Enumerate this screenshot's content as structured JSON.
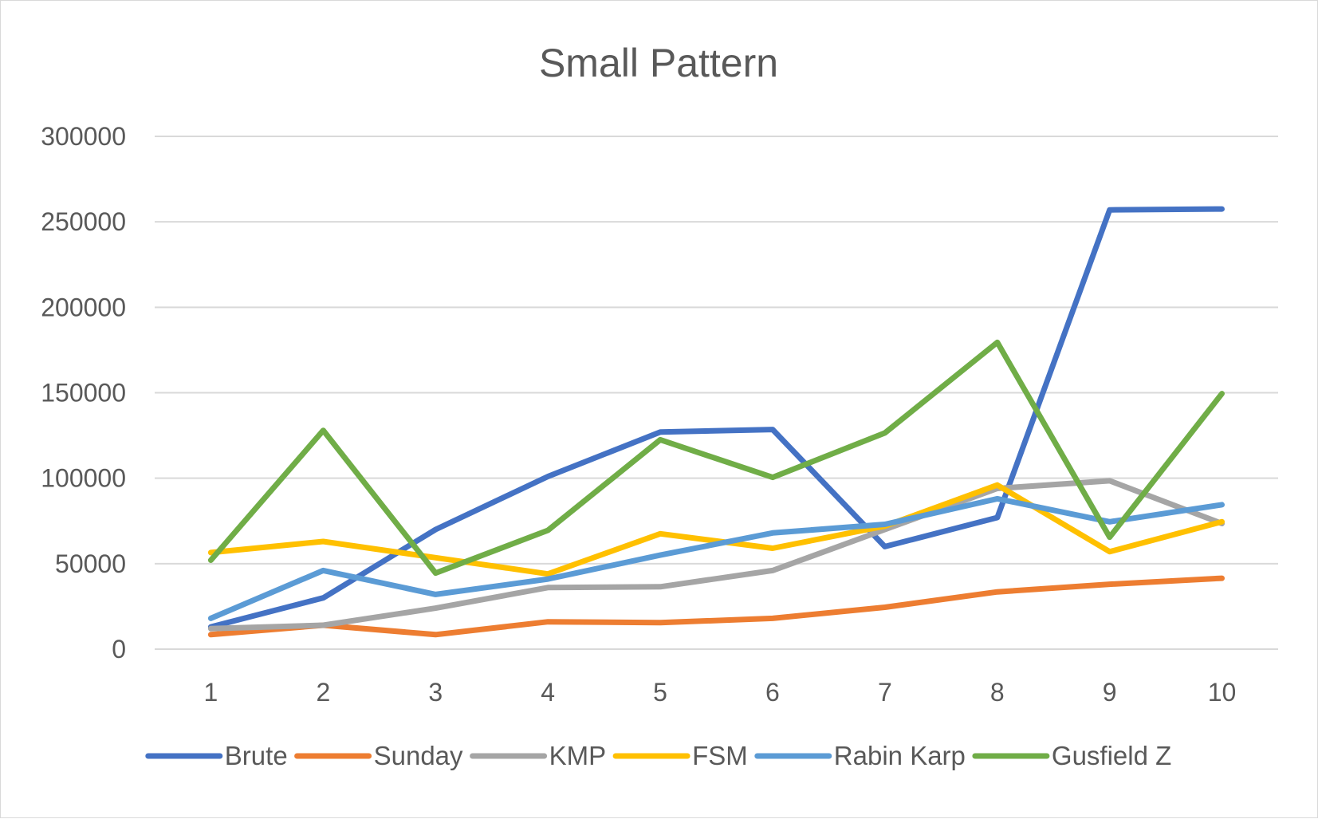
{
  "chart_data": {
    "type": "line",
    "title": "Small Pattern",
    "xlabel": "",
    "ylabel": "",
    "categories": [
      "1",
      "2",
      "3",
      "4",
      "5",
      "6",
      "7",
      "8",
      "9",
      "10"
    ],
    "ylim": [
      0,
      300000
    ],
    "yticks": [
      0,
      50000,
      100000,
      150000,
      200000,
      250000,
      300000
    ],
    "ytick_labels": [
      "0",
      "50000",
      "100000",
      "150000",
      "200000",
      "250000",
      "300000"
    ],
    "grid": true,
    "legend_position": "bottom",
    "series": [
      {
        "name": "Brute",
        "color": "#4472C4",
        "values": [
          13000,
          30000,
          70000,
          101000,
          127000,
          128500,
          60000,
          77000,
          257000,
          257500
        ]
      },
      {
        "name": "Sunday",
        "color": "#ED7D31",
        "values": [
          8500,
          14000,
          8500,
          16000,
          15500,
          18000,
          24500,
          33500,
          38000,
          41500
        ]
      },
      {
        "name": "KMP",
        "color": "#A5A5A5",
        "values": [
          12000,
          14000,
          24000,
          36000,
          36500,
          46000,
          70000,
          94000,
          98500,
          73500
        ]
      },
      {
        "name": "FSM",
        "color": "#FFC000",
        "values": [
          56500,
          63000,
          53500,
          44000,
          67500,
          59000,
          72000,
          96000,
          57000,
          74500
        ]
      },
      {
        "name": "Rabin Karp",
        "color": "#5B9BD5",
        "values": [
          18000,
          46000,
          32000,
          41000,
          55000,
          68000,
          73000,
          88000,
          74500,
          84500
        ]
      },
      {
        "name": "Gusfield Z",
        "color": "#70AD47",
        "values": [
          52000,
          128000,
          44500,
          69500,
          122500,
          100500,
          126500,
          179500,
          65500,
          149500
        ]
      }
    ]
  }
}
